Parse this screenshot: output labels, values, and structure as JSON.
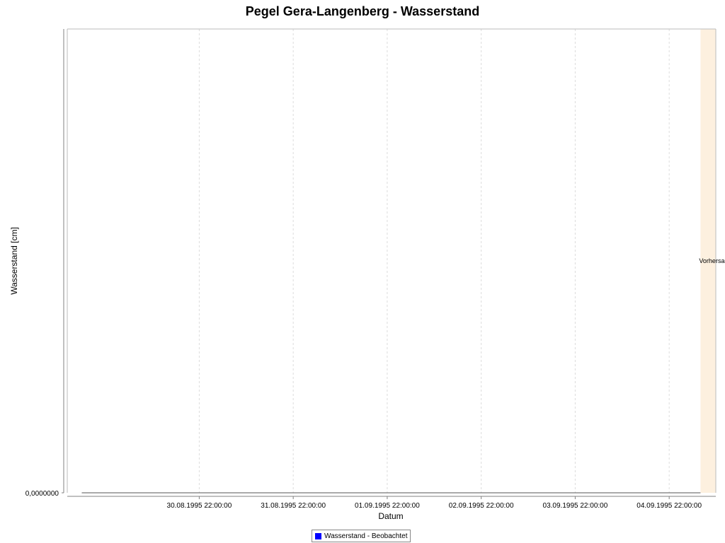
{
  "chart_data": {
    "type": "line",
    "title": "Pegel Gera-Langenberg - Wasserstand",
    "xlabel": "Datum",
    "ylabel": "Wasserstand [cm]",
    "x_ticks": [
      "30.08.1995 22:00:00",
      "31.08.1995 22:00:00",
      "01.09.1995 22:00:00",
      "02.09.1995 22:00:00",
      "03.09.1995 22:00:00",
      "04.09.1995 22:00:00"
    ],
    "y_ticks": [
      "0,0000000"
    ],
    "xlim": [
      "29.08.1995 12:18:00",
      "05.09.1995 09:54:00"
    ],
    "ylim": [
      0,
      1
    ],
    "grid": true,
    "series": [
      {
        "name": "Wasserstand - Beobachtet",
        "color": "#0000ff",
        "line_color": "#555555",
        "x": [
          "29.08.1995 16:00:00",
          "05.09.1995 06:00:00"
        ],
        "y": [
          0,
          0
        ]
      }
    ],
    "region": {
      "label": "Vorhersage",
      "start": "05.09.1995 06:00:00",
      "end": "05.09.1995 09:54:00",
      "color": "#fdf0df"
    },
    "legend_position": "bottom-center"
  }
}
